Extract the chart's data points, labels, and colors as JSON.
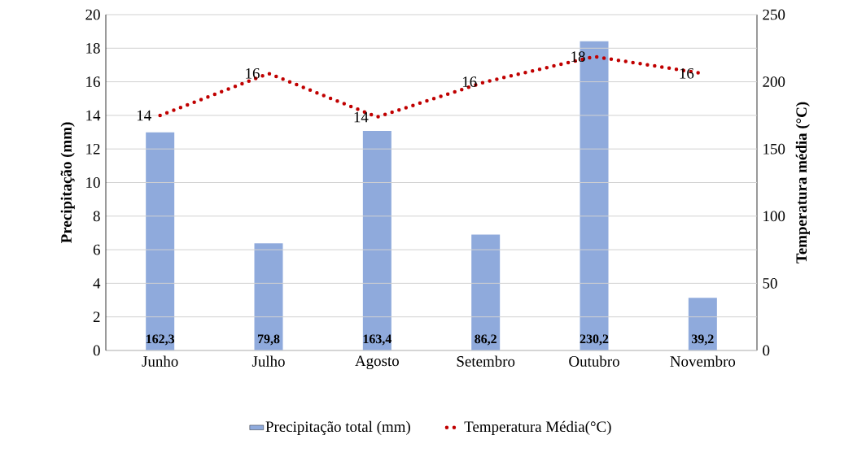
{
  "chart_data": {
    "type": "bar",
    "categories": [
      "Junho",
      "Julho",
      "Agosto",
      "Setembro",
      "Outubro",
      "Novembro"
    ],
    "ylabel": "Precipitação (mm)",
    "y2label": "Temperatura média (°C)",
    "ylim": [
      0,
      20
    ],
    "yticks": [
      0,
      2,
      4,
      6,
      8,
      10,
      12,
      14,
      16,
      18,
      20
    ],
    "y2lim": [
      0,
      250
    ],
    "y2ticks": [
      0,
      50,
      100,
      150,
      200,
      250
    ],
    "grid": "y",
    "legend": "bottom",
    "series": [
      {
        "name": "Precipitação total (mm)",
        "axis": "y2",
        "color": "#8faadc",
        "values": [
          162.3,
          79.8,
          163.4,
          86.2,
          230.2,
          39.2
        ],
        "value_labels": [
          "162,3",
          "79,8",
          "163,4",
          "86,2",
          "230,2",
          "39,2"
        ]
      },
      {
        "name": "Temperatura Média(°C)",
        "type": "line",
        "axis": "y",
        "color": "#c00000",
        "line_style": "dotted",
        "marker": "none",
        "values": [
          14.0,
          16.5,
          13.9,
          16.0,
          17.5,
          16.5
        ],
        "value_labels": [
          "14",
          "16",
          "14",
          "16",
          "18",
          "16"
        ]
      }
    ]
  }
}
